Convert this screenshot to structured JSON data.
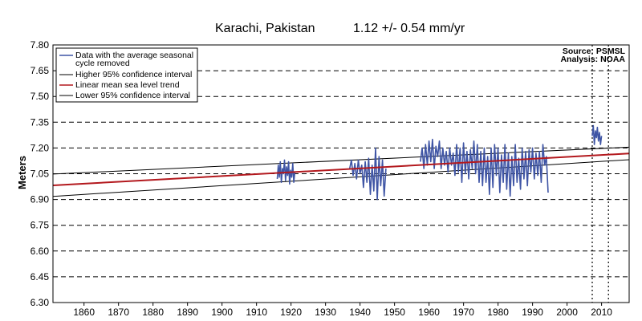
{
  "chart_data": {
    "type": "line",
    "title": "Karachi, Pakistan",
    "subtitle": "1.12 +/- 0.54  mm/yr",
    "source_lines": [
      "Source: PSMSL",
      "Analysis: NOAA"
    ],
    "ylabel": "Meters",
    "xlabel": "",
    "xlim": [
      1851,
      2018
    ],
    "ylim": [
      6.3,
      7.8
    ],
    "x_ticks": [
      1860,
      1870,
      1880,
      1890,
      1900,
      1910,
      1920,
      1930,
      1940,
      1950,
      1960,
      1970,
      1980,
      1990,
      2000,
      2010
    ],
    "y_ticks": [
      "6.30",
      "6.45",
      "6.60",
      "6.75",
      "6.90",
      "7.05",
      "7.20",
      "7.35",
      "7.50",
      "7.65",
      "7.80"
    ],
    "grid": "horizontal dashed",
    "legend_position": "top-left",
    "vertical_markers": [
      2007.3,
      2012.0
    ],
    "colors": {
      "data": "#3f55a5",
      "trend": "#b3191e",
      "confidence": "#000000",
      "grid": "#000000"
    },
    "legend": [
      {
        "label": "Data with the average seasonal",
        "label2": "cycle removed",
        "color": "#3f55a5"
      },
      {
        "label": "Higher 95% confidence interval",
        "color": "#000000"
      },
      {
        "label": "Linear mean sea level trend",
        "color": "#b3191e"
      },
      {
        "label": "Lower 95% confidence interval",
        "color": "#000000"
      }
    ],
    "lines": {
      "trend": {
        "x": [
          1851,
          2018
        ],
        "y": [
          6.982,
          7.168
        ]
      },
      "upper_ci": {
        "x": [
          1851,
          2018
        ],
        "y": [
          7.048,
          7.205
        ]
      },
      "lower_ci": {
        "x": [
          1851,
          2018
        ],
        "y": [
          6.918,
          7.132
        ]
      }
    },
    "series": [
      {
        "name": "Data with the average seasonal cycle removed",
        "x": [
          1916.0,
          1916.3,
          1916.6,
          1916.9,
          1917.2,
          1917.5,
          1917.8,
          1918.1,
          1918.4,
          1918.7,
          1919.0,
          1919.3,
          1919.6,
          1919.9,
          1920.2,
          1920.5,
          1920.8,
          1921.1
        ],
        "y": [
          7.02,
          7.1,
          7.03,
          7.12,
          7.0,
          7.08,
          7.05,
          7.13,
          7.01,
          7.09,
          7.04,
          7.12,
          6.99,
          7.07,
          7.03,
          7.11,
          7.0,
          7.06
        ]
      },
      {
        "name": "",
        "x": [
          1937.0,
          1937.5,
          1938.0,
          1938.5,
          1939.0,
          1939.5,
          1940.0,
          1940.5,
          1941.0,
          1941.5,
          1942.0,
          1942.5,
          1943.0,
          1943.5,
          1944.0,
          1944.5,
          1945.0,
          1945.5,
          1946.0,
          1946.5,
          1947.0,
          1947.5
        ],
        "y": [
          7.08,
          7.13,
          7.04,
          7.11,
          7.02,
          7.13,
          7.05,
          7.1,
          6.97,
          7.12,
          7.0,
          7.14,
          6.93,
          7.1,
          6.95,
          7.2,
          6.9,
          7.15,
          6.98,
          7.13,
          6.92,
          7.08
        ]
      },
      {
        "name": "",
        "x": [
          1957.5,
          1958.0,
          1958.5,
          1959.0,
          1959.5,
          1960.0,
          1960.5,
          1961.0,
          1961.5,
          1962.0,
          1962.5,
          1963.0,
          1963.5,
          1964.0,
          1964.5,
          1965.0,
          1965.5,
          1966.0,
          1966.5,
          1967.0,
          1967.5,
          1968.0,
          1968.5,
          1969.0,
          1969.5,
          1970.0,
          1970.5,
          1971.0,
          1971.5,
          1972.0,
          1972.5,
          1973.0,
          1973.5,
          1974.0,
          1974.5,
          1975.0,
          1975.5,
          1976.0,
          1976.5,
          1977.0,
          1977.5,
          1978.0,
          1978.5,
          1979.0,
          1979.5,
          1980.0,
          1980.5,
          1981.0,
          1981.5,
          1982.0,
          1982.5,
          1983.0,
          1983.5,
          1984.0,
          1984.5,
          1985.0,
          1985.5,
          1986.0,
          1986.5,
          1987.0,
          1987.5,
          1988.0,
          1988.5,
          1989.0,
          1989.5,
          1990.0,
          1990.5,
          1991.0,
          1991.5,
          1992.0,
          1992.5,
          1993.0,
          1993.5,
          1994.0,
          1994.5
        ],
        "y": [
          7.12,
          7.2,
          7.08,
          7.22,
          7.1,
          7.24,
          7.12,
          7.25,
          7.08,
          7.21,
          7.15,
          7.24,
          7.08,
          7.2,
          7.1,
          7.18,
          7.06,
          7.2,
          7.1,
          7.17,
          7.04,
          7.22,
          7.06,
          7.2,
          7.0,
          7.23,
          7.05,
          7.18,
          7.02,
          7.19,
          7.08,
          7.24,
          7.05,
          7.22,
          7.0,
          7.18,
          6.98,
          7.2,
          7.0,
          7.15,
          6.93,
          7.2,
          6.97,
          7.22,
          7.04,
          7.2,
          6.94,
          7.16,
          7.0,
          7.22,
          6.96,
          7.17,
          6.92,
          7.15,
          6.98,
          7.22,
          7.0,
          7.14,
          6.96,
          7.2,
          7.02,
          7.18,
          6.98,
          7.19,
          7.06,
          7.2,
          7.02,
          7.17,
          7.04,
          7.18,
          7.0,
          7.22,
          7.1,
          7.15,
          6.94
        ]
      },
      {
        "name": "",
        "x": [
          2007.3,
          2007.6,
          2007.9,
          2008.2,
          2008.5,
          2008.8,
          2009.1,
          2009.4,
          2009.7,
          2010.0
        ],
        "y": [
          7.27,
          7.33,
          7.22,
          7.3,
          7.26,
          7.32,
          7.24,
          7.29,
          7.22,
          7.27
        ]
      }
    ]
  }
}
